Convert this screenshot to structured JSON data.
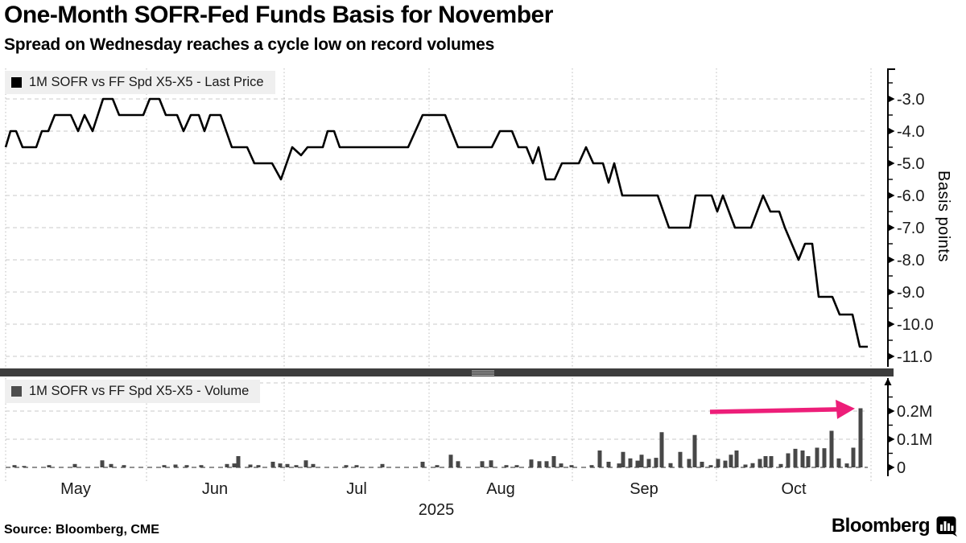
{
  "header": {
    "title": "One-Month SOFR-Fed Funds Basis for November",
    "subtitle": "Spread on Wednesday reaches a cycle low on record volumes"
  },
  "source": {
    "label": "Source: Bloomberg, CME"
  },
  "branding": {
    "logo_text": "Bloomberg",
    "logo_icon": "bloomberg-bars-bubble-icon"
  },
  "colors": {
    "price_line": "#000000",
    "volume_bar": "#474747",
    "arrow": "#ed1e79",
    "grid": "#c8c8c8",
    "grid_vertical": "#bdbdbd",
    "zero_line": "#6e6e6e",
    "divider": "#3d3d3d",
    "legend_bg": "#efefef",
    "axis": "#000000"
  },
  "x_axis": {
    "year_label": "2025",
    "months": [
      {
        "label": "May",
        "x": 94
      },
      {
        "label": "Jun",
        "x": 267
      },
      {
        "label": "Jul",
        "x": 443
      },
      {
        "label": "Aug",
        "x": 622
      },
      {
        "label": "Sep",
        "x": 800
      },
      {
        "label": "Oct",
        "x": 986
      }
    ],
    "gridlines_x": [
      7,
      182,
      353,
      533,
      711,
      890,
      1082
    ]
  },
  "chart_data": [
    {
      "id": "price",
      "type": "line",
      "legend": "1M SOFR vs FF Spd X5-X5 - Last Price",
      "legend_swatch": "#000000",
      "line_color": "#000000",
      "ylabel": "Basis points",
      "ylim": [
        -11.55,
        -2.35
      ],
      "grid": true,
      "legend_position": "top-left",
      "y_ticks": [
        {
          "v": -3,
          "label": "-3.0"
        },
        {
          "v": -4,
          "label": "-4.0"
        },
        {
          "v": -5,
          "label": "-5.0"
        },
        {
          "v": -6,
          "label": "-6.0"
        },
        {
          "v": -7,
          "label": "-7.0"
        },
        {
          "v": -8,
          "label": "-8.0"
        },
        {
          "v": -9,
          "label": "-9.0"
        },
        {
          "v": -10,
          "label": "-10.0"
        },
        {
          "v": -11,
          "label": "-11.0"
        }
      ],
      "y_minor_ticks": [
        -2.5,
        -3.5,
        -4.5,
        -5.5,
        -6.5,
        -7.5,
        -8.5,
        -9.5,
        -10.5
      ],
      "x_unit": "plot_px_May_through_early_Nov",
      "points": [
        [
          7,
          -4.5
        ],
        [
          13,
          -4.0
        ],
        [
          20,
          -4.0
        ],
        [
          28,
          -4.5
        ],
        [
          45,
          -4.5
        ],
        [
          52,
          -4.0
        ],
        [
          60,
          -4.0
        ],
        [
          68,
          -3.5
        ],
        [
          88,
          -3.5
        ],
        [
          97,
          -4.0
        ],
        [
          105,
          -3.5
        ],
        [
          115,
          -4.0
        ],
        [
          128,
          -3.0
        ],
        [
          140,
          -3.0
        ],
        [
          148,
          -3.5
        ],
        [
          178,
          -3.5
        ],
        [
          186,
          -3.0
        ],
        [
          198,
          -3.0
        ],
        [
          206,
          -3.5
        ],
        [
          220,
          -3.5
        ],
        [
          228,
          -4.0
        ],
        [
          237,
          -3.5
        ],
        [
          247,
          -3.5
        ],
        [
          254,
          -4.0
        ],
        [
          261,
          -3.5
        ],
        [
          274,
          -3.5
        ],
        [
          288,
          -4.5
        ],
        [
          307,
          -4.5
        ],
        [
          316,
          -5.0
        ],
        [
          338,
          -5.0
        ],
        [
          349,
          -5.5
        ],
        [
          363,
          -4.5
        ],
        [
          374,
          -4.75
        ],
        [
          382,
          -4.5
        ],
        [
          401,
          -4.5
        ],
        [
          407,
          -4.0
        ],
        [
          415,
          -4.0
        ],
        [
          422,
          -4.5
        ],
        [
          507,
          -4.5
        ],
        [
          525,
          -3.5
        ],
        [
          553,
          -3.5
        ],
        [
          569,
          -4.5
        ],
        [
          611,
          -4.5
        ],
        [
          621,
          -4.0
        ],
        [
          636,
          -4.0
        ],
        [
          644,
          -4.5
        ],
        [
          654,
          -4.5
        ],
        [
          662,
          -5.0
        ],
        [
          669,
          -4.5
        ],
        [
          678,
          -5.5
        ],
        [
          689,
          -5.5
        ],
        [
          698,
          -5.0
        ],
        [
          719,
          -5.0
        ],
        [
          728,
          -4.5
        ],
        [
          737,
          -5.0
        ],
        [
          749,
          -5.0
        ],
        [
          756,
          -5.6
        ],
        [
          763,
          -5.0
        ],
        [
          773,
          -6.0
        ],
        [
          817,
          -6.0
        ],
        [
          831,
          -7.0
        ],
        [
          857,
          -7.0
        ],
        [
          864,
          -6.0
        ],
        [
          884,
          -6.0
        ],
        [
          891,
          -6.5
        ],
        [
          898,
          -6.0
        ],
        [
          913,
          -7.0
        ],
        [
          933,
          -7.0
        ],
        [
          948,
          -6.0
        ],
        [
          957,
          -6.5
        ],
        [
          968,
          -6.5
        ],
        [
          975,
          -7.0
        ],
        [
          992,
          -8.0
        ],
        [
          1000,
          -7.5
        ],
        [
          1009,
          -7.5
        ],
        [
          1017,
          -9.15
        ],
        [
          1034,
          -9.15
        ],
        [
          1043,
          -9.7
        ],
        [
          1059,
          -9.7
        ],
        [
          1068,
          -10.7
        ],
        [
          1078,
          -10.7
        ]
      ]
    },
    {
      "id": "volume",
      "type": "bar",
      "legend": "1M SOFR vs FF Spd X5-X5 - Volume",
      "legend_swatch": "#4d4d4d",
      "bar_color": "#474747",
      "ylim": [
        0,
        0.32
      ],
      "y_ticks": [
        {
          "v": 0,
          "label": "0"
        },
        {
          "v": 0.1,
          "label": "0.1M"
        },
        {
          "v": 0.2,
          "label": "0.2M"
        }
      ],
      "y_minor_ticks": [
        0.05,
        0.15,
        0.25
      ],
      "y_gridlines": [
        0.1,
        0.2,
        0.3
      ],
      "unit": "millions_of_contracts",
      "bars": [
        [
          18,
          0.008
        ],
        [
          30,
          0.005
        ],
        [
          61,
          0.008
        ],
        [
          93,
          0.012
        ],
        [
          127,
          0.025
        ],
        [
          138,
          0.012
        ],
        [
          154,
          0.008
        ],
        [
          204,
          0.008
        ],
        [
          218,
          0.01
        ],
        [
          232,
          0.008
        ],
        [
          250,
          0.008
        ],
        [
          282,
          0.012
        ],
        [
          291,
          0.014
        ],
        [
          296,
          0.04
        ],
        [
          311,
          0.01
        ],
        [
          321,
          0.008
        ],
        [
          339,
          0.02
        ],
        [
          348,
          0.014
        ],
        [
          357,
          0.012
        ],
        [
          368,
          0.008
        ],
        [
          380,
          0.025
        ],
        [
          389,
          0.012
        ],
        [
          430,
          0.008
        ],
        [
          443,
          0.008
        ],
        [
          475,
          0.012
        ],
        [
          525,
          0.02
        ],
        [
          543,
          0.008
        ],
        [
          560,
          0.045
        ],
        [
          569,
          0.022
        ],
        [
          599,
          0.022
        ],
        [
          610,
          0.025
        ],
        [
          629,
          0.008
        ],
        [
          642,
          0.008
        ],
        [
          660,
          0.028
        ],
        [
          670,
          0.022
        ],
        [
          679,
          0.022
        ],
        [
          688,
          0.04
        ],
        [
          697,
          0.014
        ],
        [
          710,
          0.008
        ],
        [
          735,
          0.008
        ],
        [
          745,
          0.06
        ],
        [
          756,
          0.02
        ],
        [
          769,
          0.014
        ],
        [
          774,
          0.055
        ],
        [
          783,
          0.032
        ],
        [
          792,
          0.024
        ],
        [
          797,
          0.045
        ],
        [
          806,
          0.03
        ],
        [
          815,
          0.034
        ],
        [
          822,
          0.125
        ],
        [
          833,
          0.015
        ],
        [
          845,
          0.055
        ],
        [
          856,
          0.03
        ],
        [
          863,
          0.115
        ],
        [
          872,
          0.02
        ],
        [
          883,
          0.008
        ],
        [
          892,
          0.03
        ],
        [
          901,
          0.024
        ],
        [
          908,
          0.045
        ],
        [
          915,
          0.06
        ],
        [
          926,
          0.01
        ],
        [
          935,
          0.015
        ],
        [
          944,
          0.03
        ],
        [
          951,
          0.04
        ],
        [
          958,
          0.04
        ],
        [
          970,
          0.012
        ],
        [
          979,
          0.05
        ],
        [
          988,
          0.066
        ],
        [
          997,
          0.06
        ],
        [
          1004,
          0.04
        ],
        [
          1015,
          0.07
        ],
        [
          1024,
          0.068
        ],
        [
          1033,
          0.13
        ],
        [
          1042,
          0.032
        ],
        [
          1052,
          0.014
        ],
        [
          1060,
          0.07
        ],
        [
          1069,
          0.21
        ]
      ],
      "annotation": {
        "type": "arrow",
        "color": "#ed1e79",
        "from": [
          882,
          0.197
        ],
        "to": [
          1062,
          0.209
        ],
        "points_at": "record volume bar (0.21M)"
      }
    }
  ]
}
